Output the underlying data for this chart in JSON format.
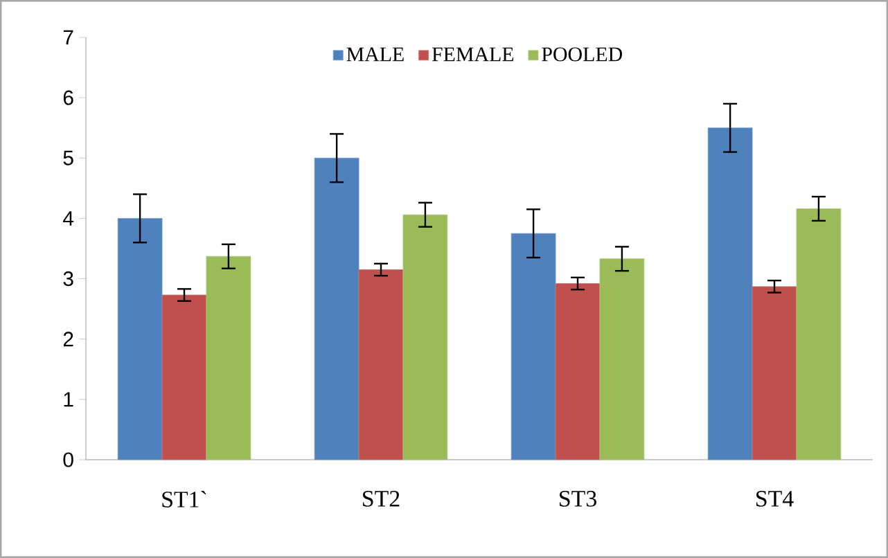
{
  "chart_data": {
    "type": "bar",
    "categories": [
      "ST1`",
      "ST2",
      "ST3",
      "ST4"
    ],
    "ylim": [
      0,
      7
    ],
    "yticks": [
      0,
      1,
      2,
      3,
      4,
      5,
      6,
      7
    ],
    "legend": "top",
    "series": [
      {
        "name": "MALE",
        "color": "#4f81bd",
        "values": [
          4.0,
          5.0,
          3.75,
          5.5
        ],
        "errors": [
          0.4,
          0.4,
          0.4,
          0.4
        ]
      },
      {
        "name": "FEMALE",
        "color": "#c0504d",
        "values": [
          2.73,
          3.15,
          2.92,
          2.87
        ],
        "errors": [
          0.1,
          0.1,
          0.1,
          0.1
        ]
      },
      {
        "name": "POOLED",
        "color": "#9bbb59",
        "values": [
          3.37,
          4.06,
          3.33,
          4.16
        ],
        "errors": [
          0.2,
          0.2,
          0.2,
          0.2
        ]
      }
    ]
  }
}
